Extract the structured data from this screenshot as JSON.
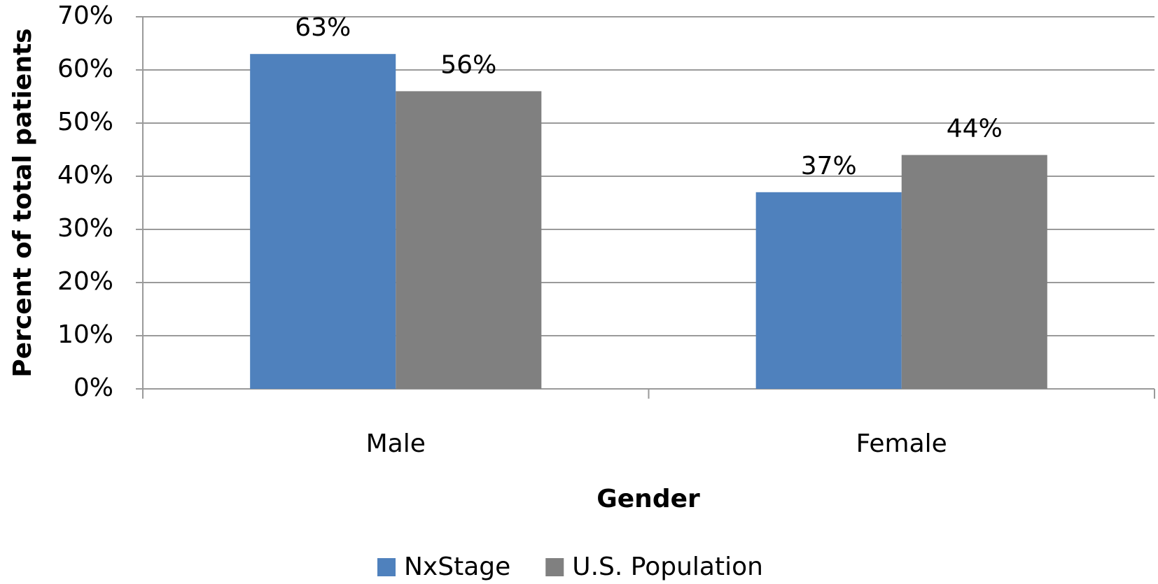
{
  "chart_data": {
    "type": "bar",
    "y_label": "Percent of total patients",
    "x_label": "Gender",
    "categories": [
      "Male",
      "Female"
    ],
    "series": [
      {
        "name": "NxStage",
        "color": "#4f81bd",
        "values": [
          63,
          37
        ],
        "value_labels": [
          "63%",
          "37%"
        ]
      },
      {
        "name": "U.S. Population",
        "color": "#808080",
        "values": [
          56,
          44
        ],
        "value_labels": [
          "56%",
          "44%"
        ]
      }
    ],
    "ylim": [
      0,
      70
    ],
    "yticks": [
      {
        "value": 0,
        "label": "0%"
      },
      {
        "value": 10,
        "label": "10%"
      },
      {
        "value": 20,
        "label": "20%"
      },
      {
        "value": 30,
        "label": "30%"
      },
      {
        "value": 40,
        "label": "40%"
      },
      {
        "value": 50,
        "label": "50%"
      },
      {
        "value": 60,
        "label": "60%"
      },
      {
        "value": 70,
        "label": "70%"
      }
    ],
    "grid": true,
    "legend": "bottom"
  }
}
